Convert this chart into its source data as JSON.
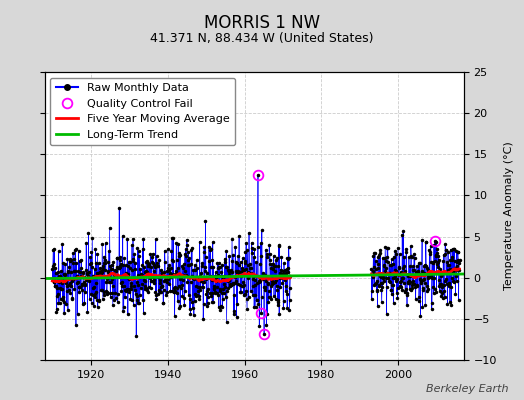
{
  "title": "MORRIS 1 NW",
  "subtitle": "41.371 N, 88.434 W (United States)",
  "ylabel": "Temperature Anomaly (°C)",
  "credit": "Berkeley Earth",
  "ylim": [
    -10,
    25
  ],
  "yticks": [
    -10,
    -5,
    0,
    5,
    10,
    15,
    20,
    25
  ],
  "xlim": [
    1908,
    2017
  ],
  "xticks": [
    1920,
    1940,
    1960,
    1980,
    2000
  ],
  "fig_bg_color": "#d8d8d8",
  "plot_bg_color": "#ffffff",
  "seed": 42,
  "raw_color": "#0000ff",
  "ma_color": "#ff0000",
  "trend_color": "#00bb00",
  "qc_color": "#ff00ff",
  "title_fontsize": 12,
  "subtitle_fontsize": 9,
  "legend_fontsize": 8,
  "credit_fontsize": 8,
  "seg1_start": 1910,
  "seg1_end": 1972,
  "seg2_start": 1993,
  "seg2_end": 2016,
  "qc_years": [
    1963.5,
    1964.3,
    1965.1,
    2009.5
  ],
  "qc_vals": [
    12.5,
    -4.3,
    -6.8,
    4.5
  ],
  "trend_x": [
    1908,
    2017
  ],
  "trend_y": [
    -0.1,
    0.45
  ]
}
